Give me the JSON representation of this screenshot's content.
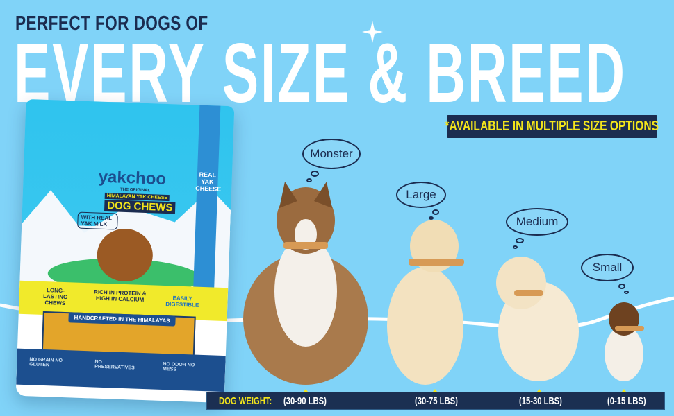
{
  "header": {
    "kicker": "PERFECT FOR DOGS OF",
    "headline": "EVERY SIZE & BREED"
  },
  "badge": "*AVAILABLE IN MULTIPLE SIZE OPTIONS",
  "sizes": [
    {
      "label": "Monster",
      "weight": "(30-90 LBS)"
    },
    {
      "label": "Large",
      "weight": "(30-75 LBS)"
    },
    {
      "label": "Medium",
      "weight": "(15-30 LBS)"
    },
    {
      "label": "Small",
      "weight": "(0-15 LBS)"
    }
  ],
  "weight_label": "DOG WEIGHT:",
  "package": {
    "brand": "yakchoo",
    "tagline": "THE ORIGINAL",
    "subtitle": "HIMALAYAN YAK CHEESE",
    "product": "DOG CHEWS",
    "side": "REAL YAK CHEESE",
    "milk": "WITH REAL YAK MILK",
    "features": [
      "LONG-LASTING CHEWS",
      "RICH IN PROTEIN & HIGH IN CALCIUM",
      "EASILY DIGESTIBLE"
    ],
    "handcrafted": "HANDCRAFTED IN THE HIMALAYAS",
    "badges": [
      "NO GRAIN NO GLUTEN",
      "NO PRESERVATIVES",
      "NO ODOR NO MESS"
    ]
  },
  "colors": {
    "background": "#80d3f8",
    "navy": "#1b2c50",
    "yellow": "#f3e51b",
    "white": "#ffffff"
  }
}
